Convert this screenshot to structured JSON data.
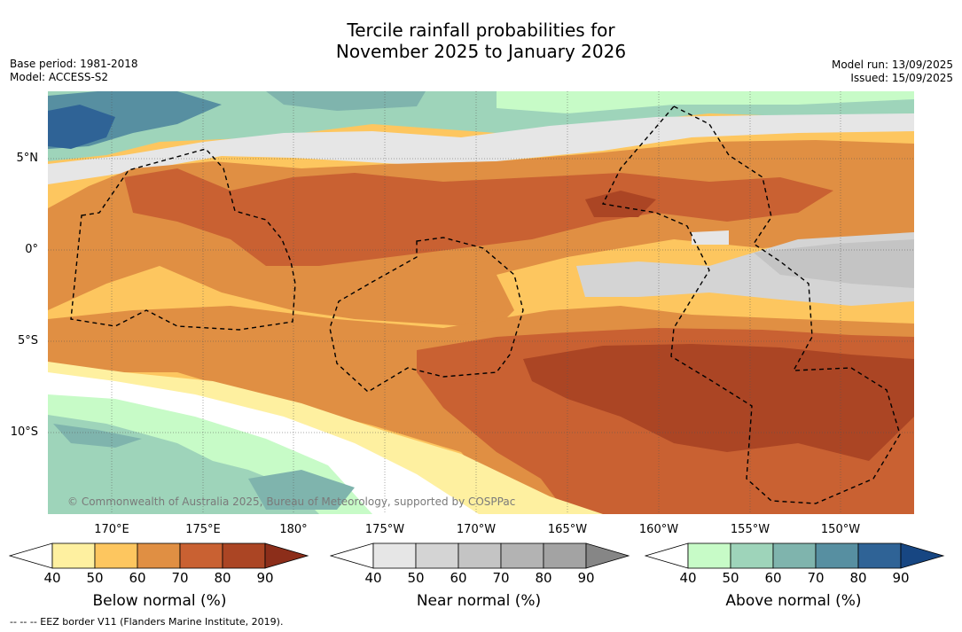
{
  "title": {
    "line1": "Tercile rainfall probabilities for",
    "line2": "November 2025 to January 2026"
  },
  "meta_left": {
    "base_period": "Base period: 1981-2018",
    "model": "Model: ACCESS-S2"
  },
  "meta_right": {
    "model_run": "Model run: 13/09/2025",
    "issued": "Issued: 15/09/2025"
  },
  "lat_labels": [
    "5°N",
    "0°",
    "5°S",
    "10°S"
  ],
  "lon_labels": [
    "170°E",
    "175°E",
    "180°",
    "175°W",
    "170°W",
    "165°W",
    "160°W",
    "155°W",
    "150°W"
  ],
  "credit": "© Commonwealth of Australia 2025, Bureau of Meteorology, supported by COSPPac",
  "colorbars": [
    {
      "name": "Below normal (%)",
      "ticks": [
        "40",
        "50",
        "60",
        "70",
        "80",
        "90"
      ],
      "colors": [
        "#ffffff",
        "#fef0a0",
        "#fdc65f",
        "#e08f43",
        "#c96132",
        "#ab4524",
        "#8c2e1a"
      ]
    },
    {
      "name": "Near normal (%)",
      "ticks": [
        "40",
        "50",
        "60",
        "70",
        "80",
        "90"
      ],
      "colors": [
        "#ffffff",
        "#e6e6e6",
        "#d4d4d4",
        "#c4c4c4",
        "#b3b3b3",
        "#a3a3a3",
        "#868686"
      ]
    },
    {
      "name": "Above normal (%)",
      "ticks": [
        "40",
        "50",
        "60",
        "70",
        "80",
        "90"
      ],
      "colors": [
        "#ffffff",
        "#c7fbc7",
        "#9ed4ba",
        "#7fb4ad",
        "#578fa1",
        "#2f6396",
        "#174682"
      ]
    }
  ],
  "footnote": "--  --  -- EEZ border V11 (Flanders Marine Institute, 2019)."
}
